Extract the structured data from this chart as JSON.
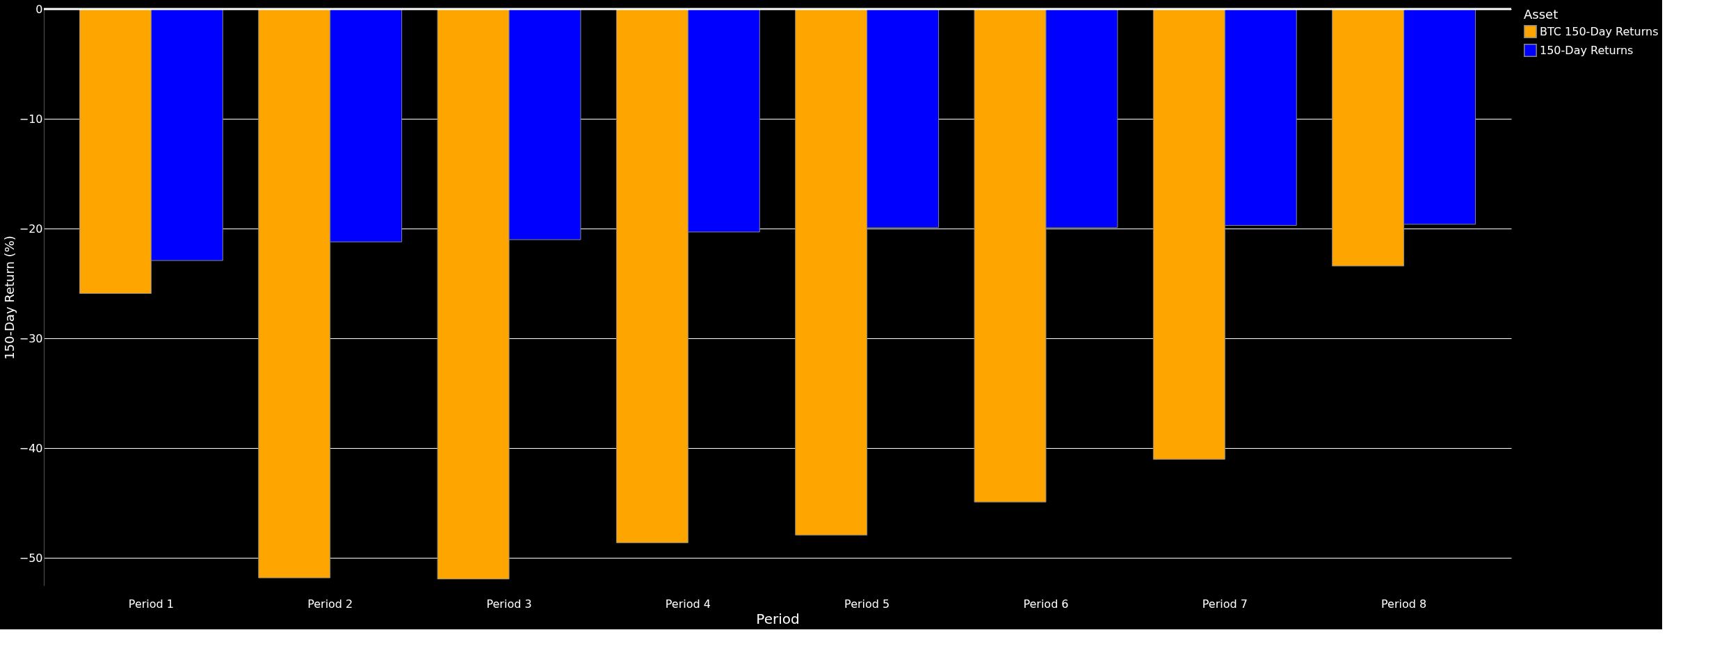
{
  "chart_data": {
    "type": "bar",
    "xlabel": "Period",
    "ylabel": "150-Day Return (%)",
    "legend_title": "Asset",
    "categories": [
      "Period 1",
      "Period 2",
      "Period 3",
      "Period 4",
      "Period 5",
      "Period 6",
      "Period 7",
      "Period 8"
    ],
    "series": [
      {
        "name": "BTC 150-Day Returns",
        "color": "#ffa500",
        "values": [
          -25.9,
          -51.8,
          -51.9,
          -48.6,
          -47.9,
          -44.9,
          -41.0,
          -23.4
        ]
      },
      {
        "name": "150-Day Returns",
        "color": "#0000ff",
        "values": [
          -22.9,
          -21.2,
          -21.0,
          -20.3,
          -19.9,
          -19.9,
          -19.7,
          -19.6
        ]
      }
    ],
    "ylim": [
      -52.5,
      0
    ],
    "yticks": [
      {
        "value": 0,
        "label": "0"
      },
      {
        "value": -10,
        "label": "−10"
      },
      {
        "value": -20,
        "label": "−20"
      },
      {
        "value": -30,
        "label": "−30"
      },
      {
        "value": -40,
        "label": "−40"
      },
      {
        "value": -50,
        "label": "−50"
      }
    ],
    "grid": "y",
    "legend": "top right"
  }
}
